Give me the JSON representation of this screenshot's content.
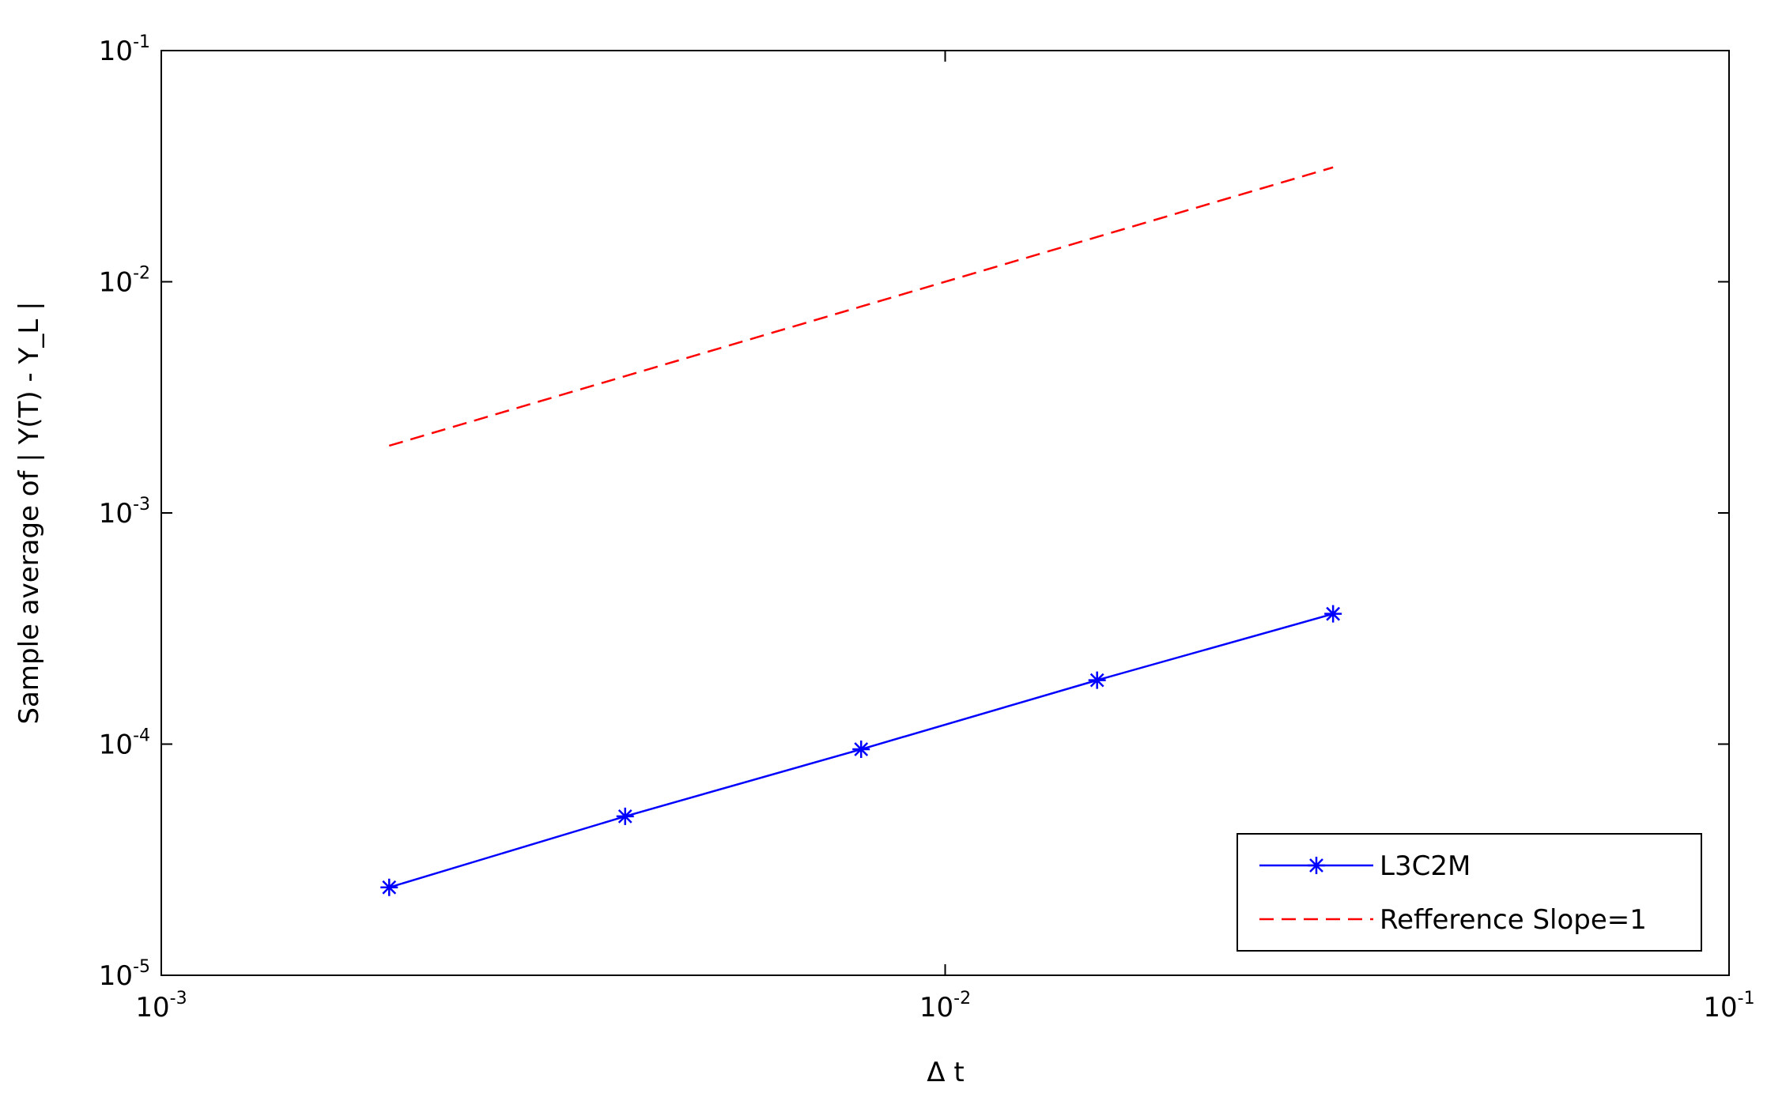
{
  "chart_data": {
    "type": "line",
    "xlabel": "Δ t",
    "ylabel": "Sample average of | Y(T) - Y_L |",
    "x": [
      0.001953125,
      0.00390625,
      0.0078125,
      0.015625,
      0.03125
    ],
    "series": [
      {
        "name": "L3C2M",
        "color": "#0000ff",
        "style": "solid",
        "marker": "*",
        "values": [
          2.4e-05,
          4.87e-05,
          9.5e-05,
          0.000189,
          0.000366
        ]
      },
      {
        "name": "Refference Slope=1",
        "color": "#ff0000",
        "style": "dashed",
        "values": [
          0.001953125,
          0.00390625,
          0.0078125,
          0.015625,
          0.03125
        ]
      }
    ],
    "xscale": "log",
    "yscale": "log",
    "xlim": [
      0.001,
      0.1
    ],
    "ylim": [
      1e-05,
      0.1
    ],
    "xticks": [
      {
        "value": 0.001,
        "label": "10",
        "exponent": "-3"
      },
      {
        "value": 0.01,
        "label": "10",
        "exponent": "-2"
      },
      {
        "value": 0.1,
        "label": "10",
        "exponent": "-1"
      }
    ],
    "yticks": [
      {
        "value": 1e-05,
        "label": "10",
        "exponent": "-5"
      },
      {
        "value": 0.0001,
        "label": "10",
        "exponent": "-4"
      },
      {
        "value": 0.001,
        "label": "10",
        "exponent": "-3"
      },
      {
        "value": 0.01,
        "label": "10",
        "exponent": "-2"
      },
      {
        "value": 0.1,
        "label": "10",
        "exponent": "-1"
      }
    ],
    "grid": false,
    "legend": "lower right"
  }
}
